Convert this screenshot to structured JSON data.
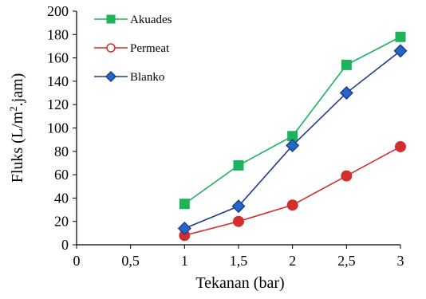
{
  "chart_data": {
    "type": "line",
    "xlabel": "Tekanan (bar)",
    "ylabel": "Fluks (L/m².jam)",
    "ylabel_parts": {
      "before": "Fluks (L/m",
      "sup": "2",
      "after": ".jam)"
    },
    "xlim": [
      0,
      3
    ],
    "ylim": [
      0,
      200
    ],
    "x_ticks": [
      0,
      0.5,
      1,
      1.5,
      2,
      2.5,
      3
    ],
    "x_tick_labels": [
      "0",
      "0,5",
      "1",
      "1,5",
      "2",
      "2,5",
      "3"
    ],
    "y_ticks": [
      0,
      20,
      40,
      60,
      80,
      100,
      120,
      140,
      160,
      180,
      200
    ],
    "y_tick_labels": [
      "0",
      "20",
      "40",
      "60",
      "80",
      "100",
      "120",
      "140",
      "160",
      "180",
      "200"
    ],
    "grid": false,
    "legend_position": "top-left",
    "series": [
      {
        "name": "Akuades",
        "color": "#1DB35A",
        "marker": "square",
        "points": [
          {
            "x": 1,
            "y": 35
          },
          {
            "x": 1.5,
            "y": 68
          },
          {
            "x": 2,
            "y": 93
          },
          {
            "x": 2.5,
            "y": 154
          },
          {
            "x": 3,
            "y": 178
          }
        ]
      },
      {
        "name": "Permeat",
        "color": "#D42D2D",
        "marker": "circle",
        "points": [
          {
            "x": 1,
            "y": 8
          },
          {
            "x": 1.5,
            "y": 20
          },
          {
            "x": 2,
            "y": 34
          },
          {
            "x": 2.5,
            "y": 59
          },
          {
            "x": 3,
            "y": 84
          }
        ]
      },
      {
        "name": "Blanko",
        "color": "#1F3F8C",
        "marker": "diamond",
        "fill": "#2467C9",
        "points": [
          {
            "x": 1,
            "y": 14
          },
          {
            "x": 1.5,
            "y": 33
          },
          {
            "x": 2,
            "y": 85
          },
          {
            "x": 2.5,
            "y": 130
          },
          {
            "x": 3,
            "y": 166
          }
        ]
      }
    ]
  }
}
